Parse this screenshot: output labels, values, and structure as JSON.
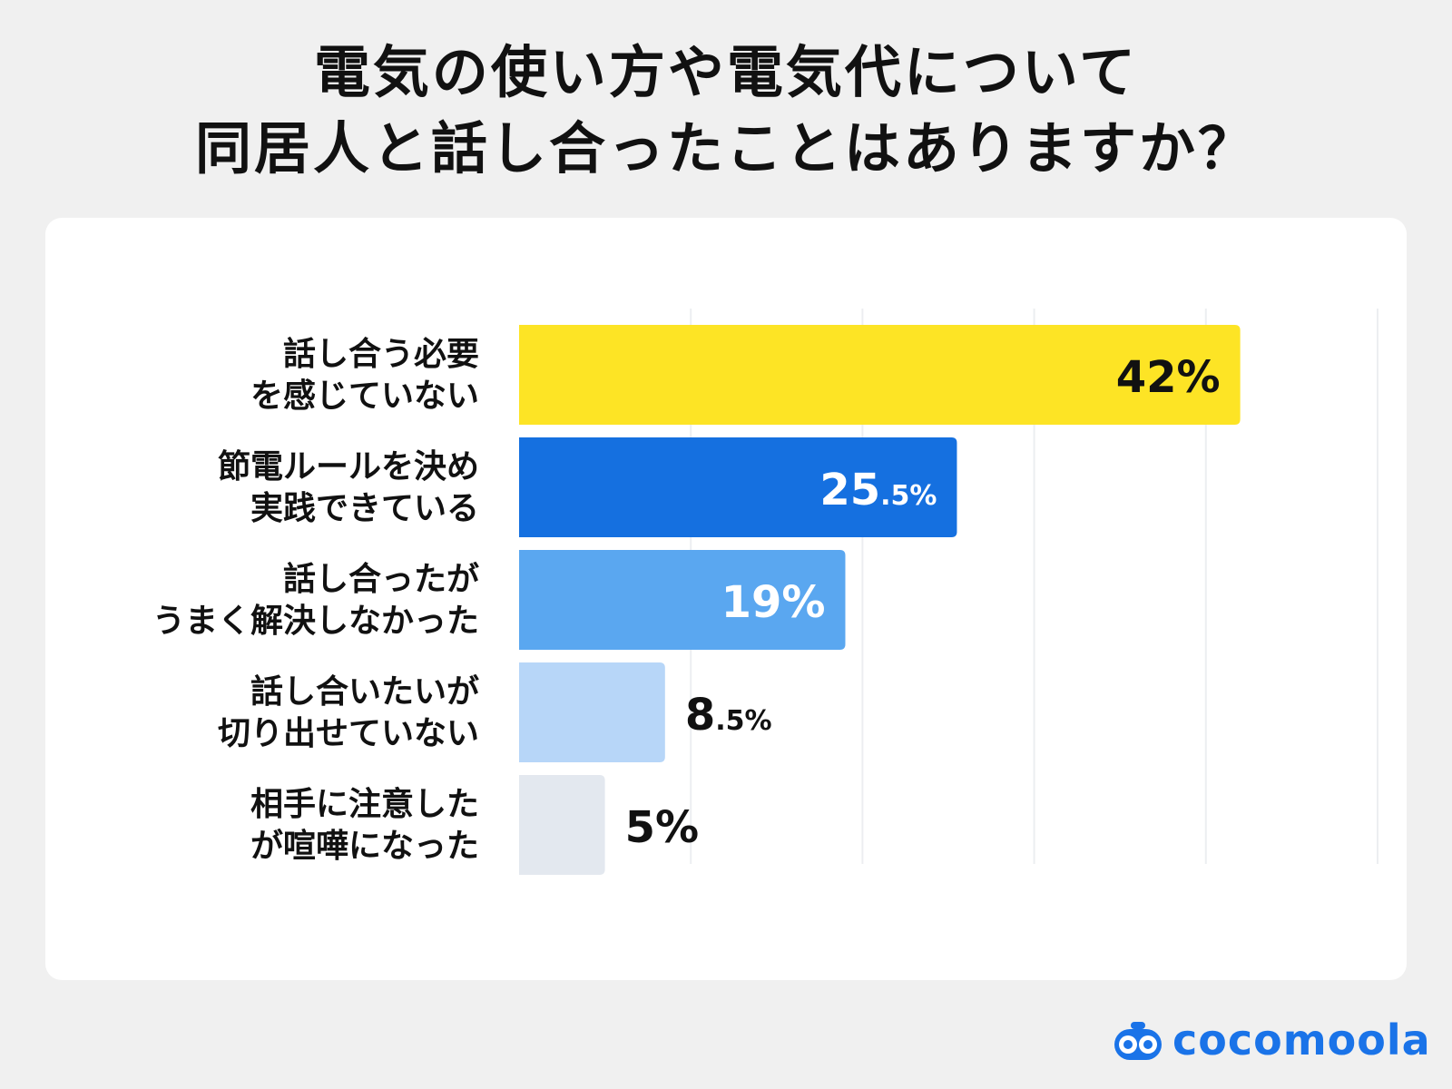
{
  "title": {
    "line1": "電気の使い方や電気代について",
    "line2": "同居人と話し合ったことはありますか？"
  },
  "chart_data": {
    "type": "bar",
    "orientation": "horizontal",
    "categories": [
      [
        "話し合う必要",
        "を感じていない"
      ],
      [
        "節電ルールを決め",
        "実践できている"
      ],
      [
        "話し合ったが",
        "うまく解決しなかった"
      ],
      [
        "話し合いたいが",
        "切り出せていない"
      ],
      [
        "相手に注意した",
        "が喧嘩になった"
      ]
    ],
    "values": [
      42,
      25.5,
      19,
      8.5,
      5
    ],
    "value_labels": [
      {
        "main": "42",
        "decimal": "",
        "unit": "%"
      },
      {
        "main": "25",
        "decimal": ".5",
        "unit": "%"
      },
      {
        "main": "19",
        "decimal": "",
        "unit": "%"
      },
      {
        "main": "8",
        "decimal": ".5",
        "unit": "%"
      },
      {
        "main": "5",
        "decimal": "",
        "unit": "%"
      }
    ],
    "colors": [
      "#fde425",
      "#1570e0",
      "#5aa7f0",
      "#b7d6f8",
      "#e3e8ef"
    ],
    "label_colors": [
      "#111111",
      "#ffffff",
      "#ffffff",
      "#111111",
      "#111111"
    ],
    "label_inside": [
      true,
      true,
      true,
      false,
      false
    ],
    "xlim": [
      0,
      50
    ],
    "grid": true
  },
  "brand": {
    "name": "cocomoola",
    "color": "#1a73e8",
    "icon": "cocomoola-logo-icon"
  }
}
